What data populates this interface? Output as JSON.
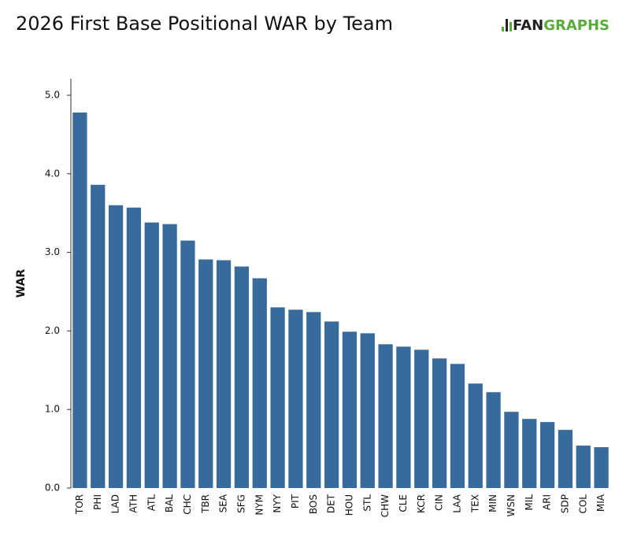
{
  "chart_data": {
    "type": "bar",
    "title": "2026 First Base Positional WAR by Team",
    "logo": {
      "dark": "FAN",
      "green": "GRAPHS"
    },
    "y_label": "WAR",
    "categories": [
      "TOR",
      "PHI",
      "LAD",
      "ATH",
      "ATL",
      "BAL",
      "CHC",
      "TBR",
      "SEA",
      "SFG",
      "NYM",
      "NYY",
      "PIT",
      "BOS",
      "DET",
      "HOU",
      "STL",
      "CHW",
      "CLE",
      "KCR",
      "CIN",
      "LAA",
      "TEX",
      "MIN",
      "WSN",
      "MIL",
      "ARI",
      "SDP",
      "COL",
      "MIA"
    ],
    "values": [
      4.78,
      3.86,
      3.6,
      3.57,
      3.38,
      3.36,
      3.15,
      2.91,
      2.9,
      2.82,
      2.67,
      2.3,
      2.27,
      2.24,
      2.12,
      1.99,
      1.97,
      1.83,
      1.8,
      1.76,
      1.65,
      1.58,
      1.33,
      1.22,
      0.97,
      0.88,
      0.84,
      0.74,
      0.54,
      0.52
    ],
    "color": "#386a9c",
    "ylim": [
      0,
      5.2
    ],
    "yticks": [
      {
        "value": 0,
        "label": "0.0"
      },
      {
        "value": 1,
        "label": "1.0"
      },
      {
        "value": 2,
        "label": "2.0"
      },
      {
        "value": 3,
        "label": "3.0"
      },
      {
        "value": 4,
        "label": "4.0"
      },
      {
        "value": 5,
        "label": "5.0"
      }
    ],
    "grid": false
  }
}
